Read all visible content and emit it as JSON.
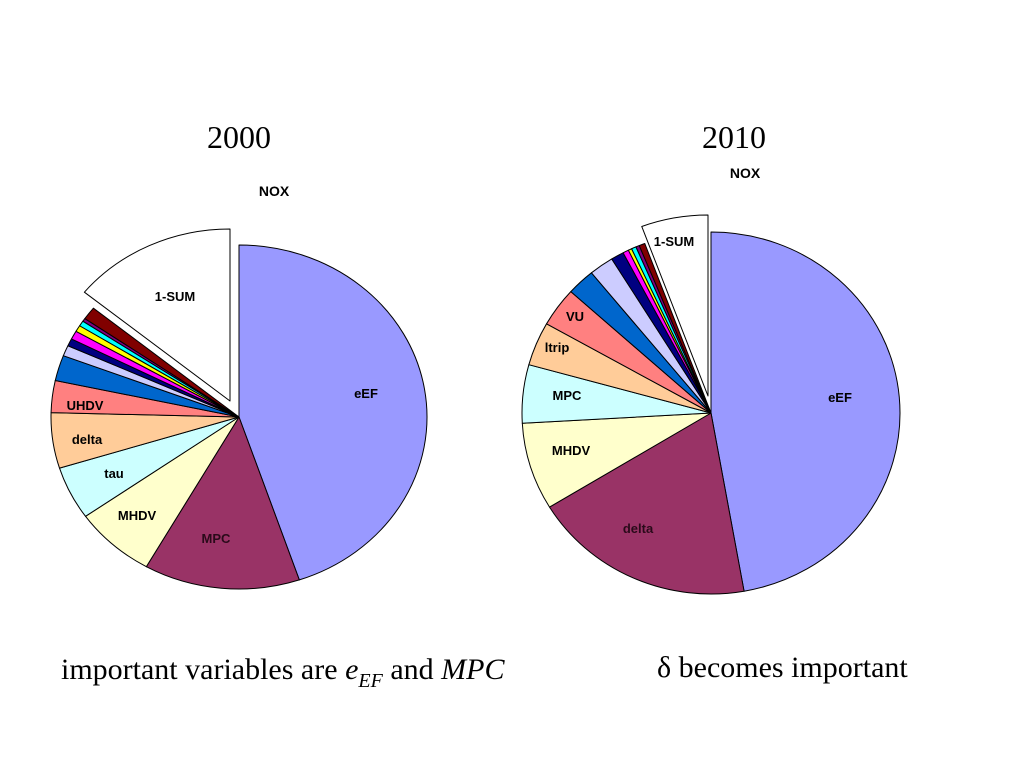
{
  "chart_data": [
    {
      "type": "pie",
      "title": "2000",
      "subtitle": "NOX",
      "unit": "percent",
      "start": "top",
      "direction": "clockwise",
      "exploded": [
        "1-SUM"
      ],
      "slices": [
        {
          "label": "eEF",
          "value": 44.8,
          "color": "#9999FF"
        },
        {
          "label": "MPC",
          "value": 13.4,
          "color": "#993366"
        },
        {
          "label": "MHDV",
          "value": 7.0,
          "color": "#FFFFCC"
        },
        {
          "label": "tau",
          "value": 5.0,
          "color": "#CCFFFF"
        },
        {
          "label": "delta",
          "value": 5.2,
          "color": "#FFCC99"
        },
        {
          "label": "UHDV",
          "value": 3.0,
          "color": "#FF8080"
        },
        {
          "label": "",
          "value": 2.4,
          "color": "#0066CC"
        },
        {
          "label": "",
          "value": 1.0,
          "color": "#CCCCFF"
        },
        {
          "label": "",
          "value": 0.7,
          "color": "#000080"
        },
        {
          "label": "",
          "value": 0.8,
          "color": "#FF00FF"
        },
        {
          "label": "",
          "value": 0.6,
          "color": "#FFFF00"
        },
        {
          "label": "",
          "value": 0.5,
          "color": "#00FFFF"
        },
        {
          "label": "",
          "value": 0.3,
          "color": "#800080"
        },
        {
          "label": "",
          "value": 1.2,
          "color": "#800000"
        },
        {
          "label": "1-SUM",
          "value": 14.1,
          "color": "#FFFFFF"
        }
      ]
    },
    {
      "type": "pie",
      "title": "2010",
      "subtitle": "NOX",
      "unit": "percent",
      "start": "top",
      "direction": "clockwise",
      "exploded": [
        "1-SUM"
      ],
      "slices": [
        {
          "label": "eEF",
          "value": 47.2,
          "color": "#9999FF"
        },
        {
          "label": "delta",
          "value": 19.1,
          "color": "#993366"
        },
        {
          "label": "MHDV",
          "value": 7.8,
          "color": "#FFFFCC"
        },
        {
          "label": "MPC",
          "value": 5.2,
          "color": "#CCFFFF"
        },
        {
          "label": "ltrip",
          "value": 3.9,
          "color": "#FFCC99"
        },
        {
          "label": "VU",
          "value": 3.5,
          "color": "#FF8080"
        },
        {
          "label": "",
          "value": 2.4,
          "color": "#0066CC"
        },
        {
          "label": "",
          "value": 2.1,
          "color": "#CCCCFF"
        },
        {
          "label": "",
          "value": 1.1,
          "color": "#000080"
        },
        {
          "label": "",
          "value": 0.5,
          "color": "#FF00FF"
        },
        {
          "label": "",
          "value": 0.3,
          "color": "#FFFF00"
        },
        {
          "label": "",
          "value": 0.4,
          "color": "#00FFFF"
        },
        {
          "label": "",
          "value": 0.3,
          "color": "#800080"
        },
        {
          "label": "",
          "value": 0.5,
          "color": "#800000"
        },
        {
          "label": "1-SUM",
          "value": 5.7,
          "color": "#FFFFFF"
        }
      ]
    }
  ],
  "captions": {
    "left": {
      "prefix": "important variables are ",
      "var1": "e",
      "var1_sub": "EF",
      "middle": " and ",
      "var2": "MPC"
    },
    "right": {
      "symbol": "δ",
      "text": " becomes important"
    }
  }
}
